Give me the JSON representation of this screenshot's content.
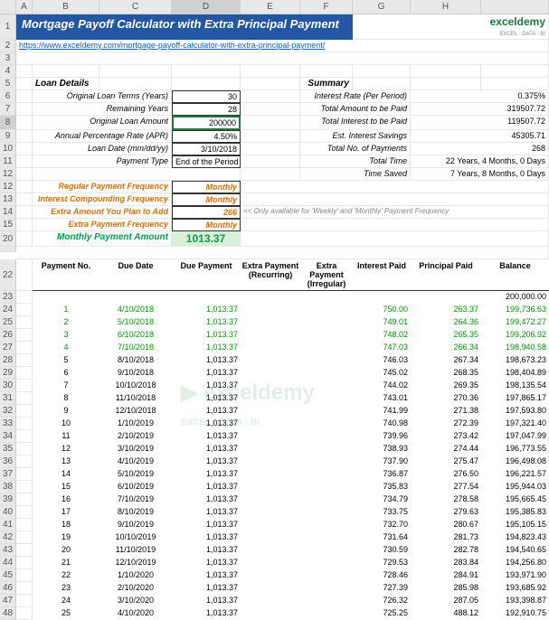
{
  "cols": [
    "",
    "A",
    "B",
    "C",
    "D",
    "E",
    "F",
    "G",
    "H"
  ],
  "title": "Mortgage Payoff Calculator with Extra Principal Payment",
  "link": "https://www.exceldemy.com/mortgage-payoff-calculator-with-extra-principal-payment/",
  "logo": {
    "main": "exceldemy",
    "sub": "EXCEL · DATA · BI"
  },
  "loan": {
    "header": "Loan Details",
    "items": [
      {
        "label": "Original Loan Terms (Years)",
        "val": "30"
      },
      {
        "label": "Remaining Years",
        "val": "28"
      },
      {
        "label": "Original Loan Amount",
        "val": "200000"
      },
      {
        "label": "Annual Percentage Rate (APR)",
        "val": "4.50%"
      },
      {
        "label": "Loan Date (mm/dd/yy)",
        "val": "3/10/2018"
      },
      {
        "label": "Payment Type",
        "val": "End of the Period"
      }
    ],
    "extras": [
      {
        "label": "Regular Payment Frequency",
        "val": "Monthly"
      },
      {
        "label": "Interest Compounding Frequency",
        "val": "Monthly"
      },
      {
        "label": "Extra Amount You Plan to Add",
        "val": "266"
      },
      {
        "label": "Extra Payment Frequency",
        "val": "Monthly"
      }
    ]
  },
  "summary": {
    "header": "Summary",
    "items": [
      {
        "label": "Interest Rate (Per Period)",
        "val": "0.375%"
      },
      {
        "label": "Total Amount to be Paid",
        "val": "319507.72"
      },
      {
        "label": "Total Interest to be Paid",
        "val": "119507.72"
      },
      {
        "label": "Est. Interest Savings",
        "val": "45305.71"
      },
      {
        "label": "Total No. of Payments",
        "val": "268"
      },
      {
        "label": "Total Time",
        "val": "22 Years, 4 Months, 0 Days"
      },
      {
        "label": "Time Saved",
        "val": "7 Years, 8 Months, 0 Days"
      }
    ]
  },
  "note": "<< Only available for 'Weekly' and 'Monthly' Payment Frequency",
  "monthly": {
    "label": "Monthly Payment Amount",
    "val": "1013.37"
  },
  "tableHeaders": [
    "Payment No.",
    "Due Date",
    "Due Payment",
    "Extra Payment (Recurring)",
    "Extra Payment (Irregular)",
    "Interest Paid",
    "Principal Paid",
    "Balance"
  ],
  "rows": [
    {
      "n": "",
      "date": "",
      "pay": "",
      "int": "",
      "prin": "",
      "bal": "200,000.00",
      "g": 0
    },
    {
      "n": "1",
      "date": "4/10/2018",
      "pay": "1,013.37",
      "int": "750.00",
      "prin": "263.37",
      "bal": "199,736.63",
      "g": 1
    },
    {
      "n": "2",
      "date": "5/10/2018",
      "pay": "1,013.37",
      "int": "749.01",
      "prin": "264.36",
      "bal": "199,472.27",
      "g": 1
    },
    {
      "n": "3",
      "date": "6/10/2018",
      "pay": "1,013.37",
      "int": "748.02",
      "prin": "265.35",
      "bal": "199,206.92",
      "g": 1
    },
    {
      "n": "4",
      "date": "7/10/2018",
      "pay": "1,013.37",
      "int": "747.03",
      "prin": "266.34",
      "bal": "198,940.58",
      "g": 1
    },
    {
      "n": "5",
      "date": "8/10/2018",
      "pay": "1,013.37",
      "int": "746.03",
      "prin": "267.34",
      "bal": "198,673.23",
      "g": 0
    },
    {
      "n": "6",
      "date": "9/10/2018",
      "pay": "1,013.37",
      "int": "745.02",
      "prin": "268.35",
      "bal": "198,404.89",
      "g": 0
    },
    {
      "n": "7",
      "date": "10/10/2018",
      "pay": "1,013.37",
      "int": "744.02",
      "prin": "269.35",
      "bal": "198,135.54",
      "g": 0
    },
    {
      "n": "8",
      "date": "11/10/2018",
      "pay": "1,013.37",
      "int": "743.01",
      "prin": "270.36",
      "bal": "197,865.17",
      "g": 0
    },
    {
      "n": "9",
      "date": "12/10/2018",
      "pay": "1,013.37",
      "int": "741.99",
      "prin": "271.38",
      "bal": "197,593.80",
      "g": 0
    },
    {
      "n": "10",
      "date": "1/10/2019",
      "pay": "1,013.37",
      "int": "740.98",
      "prin": "272.39",
      "bal": "197,321.40",
      "g": 0
    },
    {
      "n": "11",
      "date": "2/10/2019",
      "pay": "1,013.37",
      "int": "739.96",
      "prin": "273.42",
      "bal": "197,047.99",
      "g": 0
    },
    {
      "n": "12",
      "date": "3/10/2019",
      "pay": "1,013.37",
      "int": "738.93",
      "prin": "274.44",
      "bal": "196,773.55",
      "g": 0
    },
    {
      "n": "13",
      "date": "4/10/2019",
      "pay": "1,013.37",
      "int": "737.90",
      "prin": "275.47",
      "bal": "196,498.08",
      "g": 0
    },
    {
      "n": "14",
      "date": "5/10/2019",
      "pay": "1,013.37",
      "int": "736.87",
      "prin": "276.50",
      "bal": "196,221.57",
      "g": 0
    },
    {
      "n": "15",
      "date": "6/10/2019",
      "pay": "1,013.37",
      "int": "735.83",
      "prin": "277.54",
      "bal": "195,944.03",
      "g": 0
    },
    {
      "n": "16",
      "date": "7/10/2019",
      "pay": "1,013.37",
      "int": "734.79",
      "prin": "278.58",
      "bal": "195,665.45",
      "g": 0
    },
    {
      "n": "17",
      "date": "8/10/2019",
      "pay": "1,013.37",
      "int": "733.75",
      "prin": "279.63",
      "bal": "195,385.83",
      "g": 0
    },
    {
      "n": "18",
      "date": "9/10/2019",
      "pay": "1,013.37",
      "int": "732.70",
      "prin": "280.67",
      "bal": "195,105.15",
      "g": 0
    },
    {
      "n": "19",
      "date": "10/10/2019",
      "pay": "1,013.37",
      "int": "731.64",
      "prin": "281.73",
      "bal": "194,823.43",
      "g": 0
    },
    {
      "n": "20",
      "date": "11/10/2019",
      "pay": "1,013.37",
      "int": "730.59",
      "prin": "282.78",
      "bal": "194,540.65",
      "g": 0
    },
    {
      "n": "21",
      "date": "12/10/2019",
      "pay": "1,013.37",
      "int": "729.53",
      "prin": "283.84",
      "bal": "194,256.80",
      "g": 0
    },
    {
      "n": "22",
      "date": "1/10/2020",
      "pay": "1,013.37",
      "int": "728.46",
      "prin": "284.91",
      "bal": "193,971.90",
      "g": 0
    },
    {
      "n": "23",
      "date": "2/10/2020",
      "pay": "1,013.37",
      "int": "727.39",
      "prin": "285.98",
      "bal": "193,685.92",
      "g": 0
    },
    {
      "n": "24",
      "date": "3/10/2020",
      "pay": "1,013.37",
      "int": "726.32",
      "prin": "287.05",
      "bal": "193,398.87",
      "g": 0
    },
    {
      "n": "25",
      "date": "4/10/2020",
      "pay": "1,013.37",
      "int": "725.25",
      "prin": "488.12",
      "bal": "192,910.75",
      "g": 0
    }
  ],
  "rowNums": [
    1,
    2,
    3,
    4,
    5,
    6,
    7,
    8,
    9,
    10,
    11,
    12,
    13,
    14,
    15,
    20,
    22,
    23,
    24,
    25,
    26,
    27,
    28,
    29,
    30,
    31,
    32,
    33,
    34,
    35,
    36,
    37,
    38,
    39,
    40,
    41,
    42,
    43,
    44,
    45,
    46,
    47,
    48
  ]
}
